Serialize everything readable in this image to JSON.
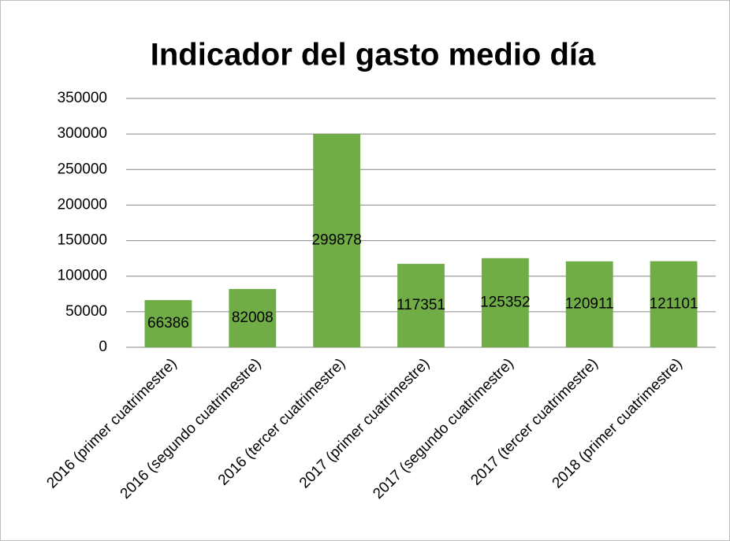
{
  "chart_data": {
    "type": "bar",
    "title": "Indicador del gasto medio día",
    "categories": [
      "2016 (primer cuatrimestre)",
      "2016 (segundo cuatrimestre)",
      "2016 (tercer cuatrimestre)",
      "2017 (primer cuatrimestre)",
      "2017 (segundo cuatrimestre)",
      "2017 (tercer cuatrimestre)",
      "2018 (primer cuatrimestre)"
    ],
    "values": [
      66386,
      82008,
      299878,
      117351,
      125352,
      120911,
      121101
    ],
    "color": "#70ad47",
    "ylim": [
      0,
      350000
    ],
    "yticks": [
      0,
      50000,
      100000,
      150000,
      200000,
      250000,
      300000,
      350000
    ],
    "grid": true
  }
}
